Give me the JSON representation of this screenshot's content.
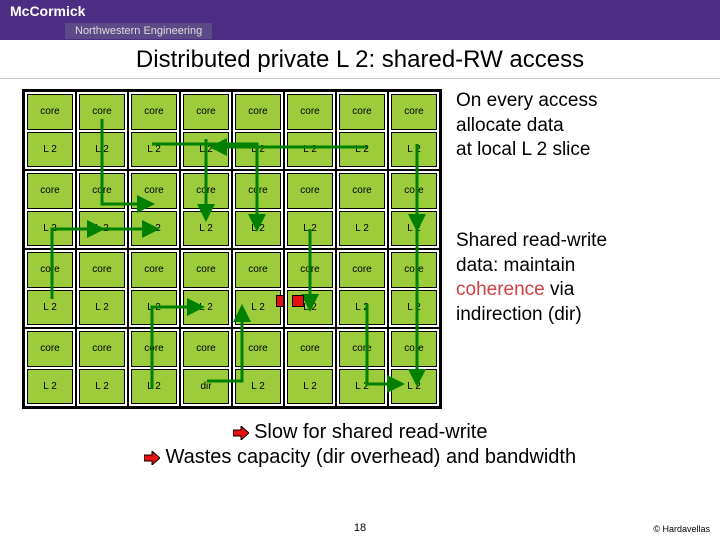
{
  "brand": {
    "name": "McCormick",
    "sub": "Northwestern Engineering"
  },
  "title": "Distributed private L 2: shared-RW access",
  "grid": {
    "rows": 4,
    "cols": 8,
    "tile_core_label": "core",
    "tile_l2_label": "L 2",
    "dir_row": 3,
    "dir_col": 3,
    "dir_label": "dir",
    "colors": {
      "tile_bg": "#9ccc3c",
      "border": "#000000",
      "red": "#e81010"
    },
    "red_markers": [
      {
        "row": 2,
        "col": 5
      },
      {
        "row": 2,
        "col": 4,
        "partial": true
      }
    ],
    "arrows": {
      "stroke": "#008000",
      "stroke_width": 3,
      "paths": [
        "M 80 30 L 80 115 L 130 115",
        "M 184 50 L 184 130",
        "M 130 55 L 235 55 L 235 140",
        "M 395 55 L 395 140",
        "M 345 58 L 190 58",
        "M 78 140 L 135 140",
        "M 30 210 L 30 140 L 80 140",
        "M 130 300 L 130 218 L 180 218",
        "M 185 292 L 220 292 L 220 218",
        "M 288 140 L 288 220",
        "M 345 215 L 345 295 L 380 295",
        "M 395 140 L 395 295"
      ]
    }
  },
  "side": {
    "p1_l1": "On every access",
    "p1_l2": "allocate data",
    "p1_l3": "at local L 2 slice",
    "p2_l1": "Shared read-write",
    "p2_l2": "data: maintain",
    "p2_l3a": "coherence",
    "p2_l3b": " via",
    "p2_l4": "indirection (dir)"
  },
  "bullets": {
    "b1": "Slow for shared read-write",
    "b2": "Wastes capacity (dir overhead) and bandwidth",
    "arrow_color": "#e81010"
  },
  "page_number": "18",
  "copyright": "© Hardavellas"
}
